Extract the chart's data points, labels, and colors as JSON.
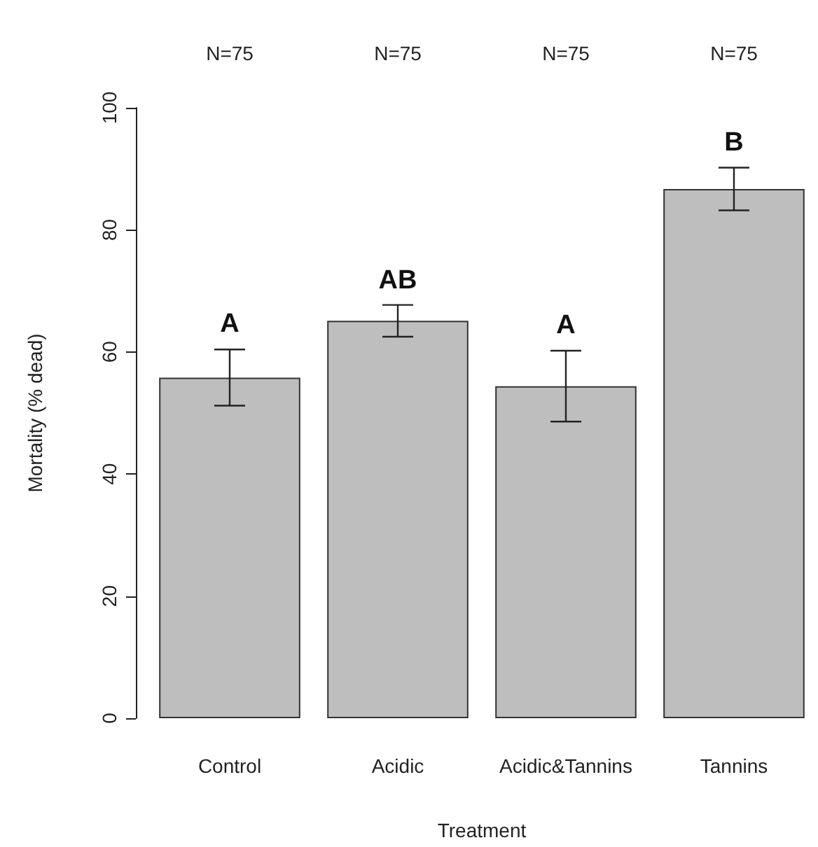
{
  "chart_data": {
    "type": "bar",
    "xlabel": "Treatment",
    "ylabel": "Mortality (% dead)",
    "categories": [
      "Control",
      "Acidic",
      "Acidic&Tannins",
      "Tannins"
    ],
    "values": [
      55.8,
      65.1,
      54.4,
      86.7
    ],
    "errors": [
      4.6,
      2.6,
      5.8,
      3.5
    ],
    "color": "#bebebe",
    "ylim": [
      0,
      100
    ],
    "yticks": [
      0,
      20,
      40,
      60,
      80,
      100
    ],
    "grid": false,
    "annotations": [
      {
        "text": "A",
        "x": "Control",
        "y": 60.5
      },
      {
        "text": "AB",
        "x": "Acidic",
        "y": 67.7
      },
      {
        "text": "A",
        "x": "Acidic&Tannins",
        "y": 60.3
      },
      {
        "text": "B",
        "x": "Tannins",
        "y": 90.2
      },
      "N=75",
      "N=75",
      "N=75",
      "N=75"
    ]
  }
}
